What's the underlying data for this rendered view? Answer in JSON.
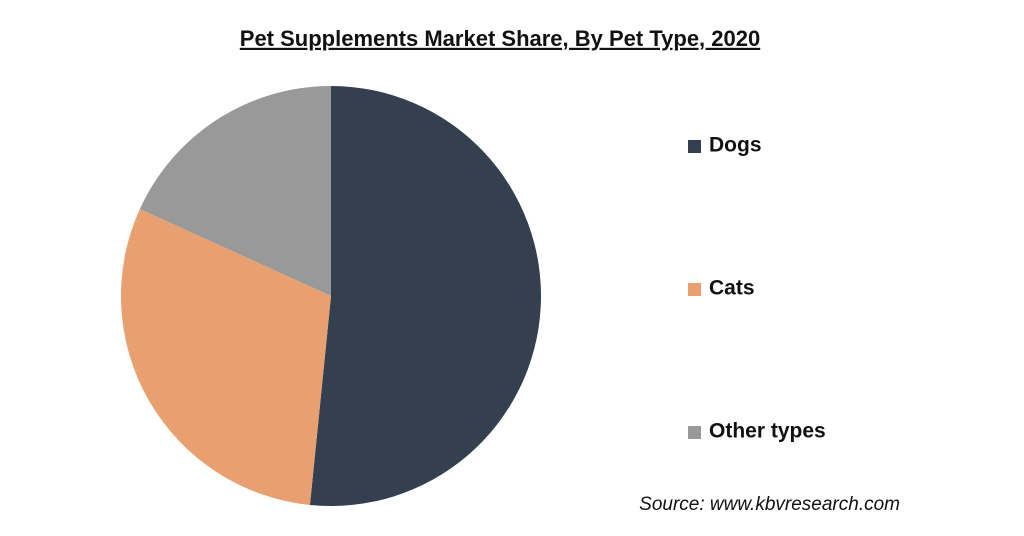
{
  "chart_data": {
    "type": "pie",
    "title": "Pet Supplements Market Share, By Pet Type, 2020",
    "categories": [
      "Dogs",
      "Cats",
      "Other types"
    ],
    "values": [
      51.6,
      30.2,
      18.2
    ],
    "colors": [
      "#343f50",
      "#e8a070",
      "#999999"
    ],
    "legend": "right",
    "source": "Source: www.kbvresearch.com"
  }
}
